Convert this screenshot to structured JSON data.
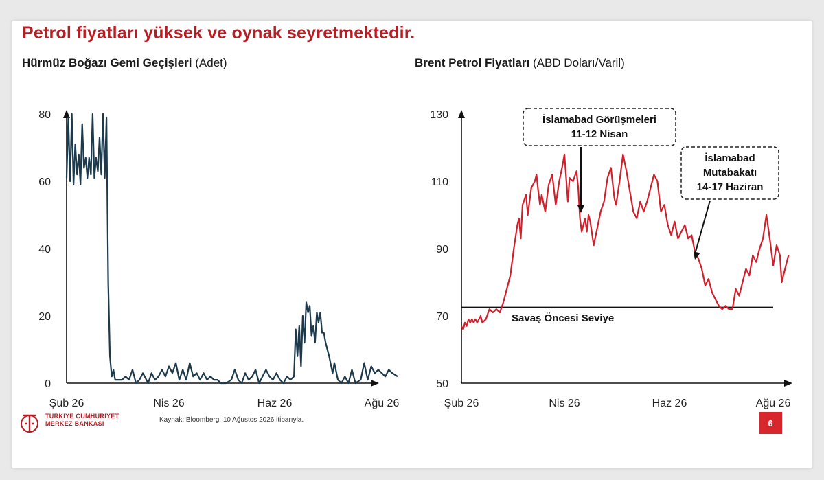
{
  "headline": "Petrol fiyatları yüksek ve oynak seyretmektedir.",
  "left_title": {
    "bold": "Hürmüz Boğazı Gemi Geçişleri",
    "unit": "(Adet)"
  },
  "right_title": {
    "bold": "Brent Petrol Fiyatları",
    "unit": "(ABD Doları/Varil)"
  },
  "source": "Kaynak: Bloomberg, 10 Ağustos 2026 itibarıyla.",
  "logo": {
    "line1": "TÜRKİYE CUMHURİYET",
    "line2": "MERKEZ BANKASI"
  },
  "page_number": "6",
  "colors": {
    "accent": "#b51f24",
    "left_series": "#1d3a4d",
    "right_series": "#d0202b"
  },
  "chart_data": [
    {
      "type": "line",
      "title": "Hürmüz Boğazı Gemi Geçişleri (Adet)",
      "x_axis": {
        "type": "date",
        "range": [
          "2026-02-01",
          "2026-08-10"
        ],
        "ticks": [
          {
            "label": "Şub 26",
            "date": "2026-02-01"
          },
          {
            "label": "Nis 26",
            "date": "2026-04-01"
          },
          {
            "label": "Haz 26",
            "date": "2026-06-01"
          },
          {
            "label": "Ağu 26",
            "date": "2026-08-01"
          }
        ]
      },
      "ylim": [
        0,
        80
      ],
      "yticks": [
        0,
        20,
        40,
        60,
        80
      ],
      "series": [
        {
          "color": "#1d3a4d",
          "points": [
            [
              "2026-02-01",
              61
            ],
            [
              "2026-02-02",
              79
            ],
            [
              "2026-02-03",
              60
            ],
            [
              "2026-02-04",
              80
            ],
            [
              "2026-02-05",
              59
            ],
            [
              "2026-02-06",
              71
            ],
            [
              "2026-02-07",
              62
            ],
            [
              "2026-02-08",
              68
            ],
            [
              "2026-02-09",
              59
            ],
            [
              "2026-02-10",
              77
            ],
            [
              "2026-02-11",
              64
            ],
            [
              "2026-02-12",
              67
            ],
            [
              "2026-02-13",
              61
            ],
            [
              "2026-02-14",
              67
            ],
            [
              "2026-02-15",
              62
            ],
            [
              "2026-02-16",
              80
            ],
            [
              "2026-02-17",
              61
            ],
            [
              "2026-02-18",
              67
            ],
            [
              "2026-02-19",
              63
            ],
            [
              "2026-02-20",
              73
            ],
            [
              "2026-02-21",
              62
            ],
            [
              "2026-02-22",
              80
            ],
            [
              "2026-02-23",
              61
            ],
            [
              "2026-02-24",
              79
            ],
            [
              "2026-02-25",
              30
            ],
            [
              "2026-02-26",
              8
            ],
            [
              "2026-02-27",
              2
            ],
            [
              "2026-02-28",
              4
            ],
            [
              "2026-03-01",
              1
            ],
            [
              "2026-03-03",
              1
            ],
            [
              "2026-03-05",
              1
            ],
            [
              "2026-03-07",
              2
            ],
            [
              "2026-03-09",
              1
            ],
            [
              "2026-03-11",
              4
            ],
            [
              "2026-03-13",
              0
            ],
            [
              "2026-03-15",
              1
            ],
            [
              "2026-03-17",
              3
            ],
            [
              "2026-03-19",
              1
            ],
            [
              "2026-03-20",
              0
            ],
            [
              "2026-03-22",
              3
            ],
            [
              "2026-03-24",
              1
            ],
            [
              "2026-03-26",
              2
            ],
            [
              "2026-03-28",
              4
            ],
            [
              "2026-03-30",
              2
            ],
            [
              "2026-04-01",
              5
            ],
            [
              "2026-04-03",
              3
            ],
            [
              "2026-04-05",
              6
            ],
            [
              "2026-04-07",
              1
            ],
            [
              "2026-04-09",
              4
            ],
            [
              "2026-04-11",
              1
            ],
            [
              "2026-04-13",
              6
            ],
            [
              "2026-04-15",
              2
            ],
            [
              "2026-04-17",
              3
            ],
            [
              "2026-04-19",
              1
            ],
            [
              "2026-04-21",
              3
            ],
            [
              "2026-04-23",
              1
            ],
            [
              "2026-04-25",
              2
            ],
            [
              "2026-04-27",
              1
            ],
            [
              "2026-04-29",
              1
            ],
            [
              "2026-05-01",
              0
            ],
            [
              "2026-05-04",
              0
            ],
            [
              "2026-05-07",
              1
            ],
            [
              "2026-05-09",
              4
            ],
            [
              "2026-05-11",
              1
            ],
            [
              "2026-05-13",
              0
            ],
            [
              "2026-05-15",
              3
            ],
            [
              "2026-05-17",
              1
            ],
            [
              "2026-05-19",
              2
            ],
            [
              "2026-05-21",
              4
            ],
            [
              "2026-05-23",
              0
            ],
            [
              "2026-05-25",
              2
            ],
            [
              "2026-05-27",
              4
            ],
            [
              "2026-05-29",
              2
            ],
            [
              "2026-05-31",
              1
            ],
            [
              "2026-06-02",
              3
            ],
            [
              "2026-06-04",
              1
            ],
            [
              "2026-06-06",
              0
            ],
            [
              "2026-06-08",
              2
            ],
            [
              "2026-06-10",
              1
            ],
            [
              "2026-06-12",
              2
            ],
            [
              "2026-06-13",
              16
            ],
            [
              "2026-06-14",
              8
            ],
            [
              "2026-06-15",
              17
            ],
            [
              "2026-06-16",
              5
            ],
            [
              "2026-06-17",
              20
            ],
            [
              "2026-06-18",
              12
            ],
            [
              "2026-06-19",
              24
            ],
            [
              "2026-06-20",
              21
            ],
            [
              "2026-06-21",
              23
            ],
            [
              "2026-06-22",
              14
            ],
            [
              "2026-06-23",
              17
            ],
            [
              "2026-06-24",
              12
            ],
            [
              "2026-06-25",
              21
            ],
            [
              "2026-06-26",
              18
            ],
            [
              "2026-06-27",
              21
            ],
            [
              "2026-06-28",
              15
            ],
            [
              "2026-06-29",
              15
            ],
            [
              "2026-06-30",
              12
            ],
            [
              "2026-07-02",
              8
            ],
            [
              "2026-07-04",
              3
            ],
            [
              "2026-07-05",
              6
            ],
            [
              "2026-07-07",
              1
            ],
            [
              "2026-07-09",
              0
            ],
            [
              "2026-07-11",
              2
            ],
            [
              "2026-07-13",
              0
            ],
            [
              "2026-07-15",
              4
            ],
            [
              "2026-07-17",
              0
            ],
            [
              "2026-07-20",
              1
            ],
            [
              "2026-07-22",
              6
            ],
            [
              "2026-07-24",
              1
            ],
            [
              "2026-07-26",
              5
            ],
            [
              "2026-07-28",
              3
            ],
            [
              "2026-07-30",
              4
            ],
            [
              "2026-08-01",
              3
            ],
            [
              "2026-08-03",
              2
            ],
            [
              "2026-08-05",
              4
            ],
            [
              "2026-08-07",
              3
            ],
            [
              "2026-08-10",
              2
            ]
          ]
        }
      ]
    },
    {
      "type": "line",
      "title": "Brent Petrol Fiyatları (ABD Doları/Varil)",
      "x_axis": {
        "type": "date",
        "range": [
          "2026-02-01",
          "2026-08-10"
        ],
        "ticks": [
          {
            "label": "Şub 26",
            "date": "2026-02-01"
          },
          {
            "label": "Nis 26",
            "date": "2026-04-01"
          },
          {
            "label": "Haz 26",
            "date": "2026-06-01"
          },
          {
            "label": "Ağu 26",
            "date": "2026-08-01"
          }
        ]
      },
      "ylim": [
        50,
        130
      ],
      "yticks": [
        50,
        70,
        90,
        110,
        130
      ],
      "reference_line": {
        "value": 72.5,
        "label": "Savaş Öncesi Seviye"
      },
      "annotations": [
        {
          "lines": [
            "İslamabad Görüşmeleri",
            "11-12 Nisan"
          ]
        },
        {
          "lines": [
            "İslamabad",
            "Mutabakatı",
            "14-17 Haziran"
          ]
        }
      ],
      "series": [
        {
          "color": "#d0202b",
          "points": [
            [
              "2026-02-01",
              67
            ],
            [
              "2026-02-02",
              66
            ],
            [
              "2026-02-03",
              68
            ],
            [
              "2026-02-04",
              67
            ],
            [
              "2026-02-05",
              69
            ],
            [
              "2026-02-06",
              68
            ],
            [
              "2026-02-07",
              69
            ],
            [
              "2026-02-08",
              68
            ],
            [
              "2026-02-09",
              69
            ],
            [
              "2026-02-10",
              68
            ],
            [
              "2026-02-12",
              70
            ],
            [
              "2026-02-13",
              68
            ],
            [
              "2026-02-15",
              69
            ],
            [
              "2026-02-17",
              72
            ],
            [
              "2026-02-19",
              71
            ],
            [
              "2026-02-21",
              72
            ],
            [
              "2026-02-23",
              71
            ],
            [
              "2026-02-25",
              74
            ],
            [
              "2026-02-27",
              78
            ],
            [
              "2026-03-01",
              82
            ],
            [
              "2026-03-03",
              90
            ],
            [
              "2026-03-05",
              97
            ],
            [
              "2026-03-06",
              99
            ],
            [
              "2026-03-07",
              93
            ],
            [
              "2026-03-08",
              103
            ],
            [
              "2026-03-10",
              106
            ],
            [
              "2026-03-11",
              100
            ],
            [
              "2026-03-13",
              108
            ],
            [
              "2026-03-15",
              110
            ],
            [
              "2026-03-16",
              112
            ],
            [
              "2026-03-17",
              107
            ],
            [
              "2026-03-18",
              103
            ],
            [
              "2026-03-19",
              106
            ],
            [
              "2026-03-21",
              101
            ],
            [
              "2026-03-23",
              109
            ],
            [
              "2026-03-25",
              112
            ],
            [
              "2026-03-27",
              103
            ],
            [
              "2026-03-29",
              110
            ],
            [
              "2026-03-31",
              115
            ],
            [
              "2026-04-01",
              118
            ],
            [
              "2026-04-03",
              104
            ],
            [
              "2026-04-04",
              111
            ],
            [
              "2026-04-06",
              110
            ],
            [
              "2026-04-08",
              113
            ],
            [
              "2026-04-09",
              108
            ],
            [
              "2026-04-10",
              99
            ],
            [
              "2026-04-11",
              95
            ],
            [
              "2026-04-12",
              97
            ],
            [
              "2026-04-13",
              99
            ],
            [
              "2026-04-14",
              95
            ],
            [
              "2026-04-15",
              100
            ],
            [
              "2026-04-16",
              98
            ],
            [
              "2026-04-18",
              91
            ],
            [
              "2026-04-20",
              96
            ],
            [
              "2026-04-22",
              101
            ],
            [
              "2026-04-24",
              104
            ],
            [
              "2026-04-26",
              111
            ],
            [
              "2026-04-28",
              114
            ],
            [
              "2026-04-30",
              105
            ],
            [
              "2026-05-01",
              103
            ],
            [
              "2026-05-03",
              110
            ],
            [
              "2026-05-05",
              118
            ],
            [
              "2026-05-07",
              113
            ],
            [
              "2026-05-09",
              107
            ],
            [
              "2026-05-11",
              101
            ],
            [
              "2026-05-13",
              99
            ],
            [
              "2026-05-15",
              104
            ],
            [
              "2026-05-17",
              101
            ],
            [
              "2026-05-19",
              104
            ],
            [
              "2026-05-21",
              108
            ],
            [
              "2026-05-23",
              112
            ],
            [
              "2026-05-25",
              110
            ],
            [
              "2026-05-27",
              101
            ],
            [
              "2026-05-29",
              103
            ],
            [
              "2026-05-31",
              97
            ],
            [
              "2026-06-02",
              94
            ],
            [
              "2026-06-04",
              98
            ],
            [
              "2026-06-06",
              93
            ],
            [
              "2026-06-08",
              95
            ],
            [
              "2026-06-10",
              97
            ],
            [
              "2026-06-12",
              93
            ],
            [
              "2026-06-14",
              94
            ],
            [
              "2026-06-16",
              89
            ],
            [
              "2026-06-18",
              87
            ],
            [
              "2026-06-20",
              84
            ],
            [
              "2026-06-22",
              79
            ],
            [
              "2026-06-24",
              81
            ],
            [
              "2026-06-26",
              77
            ],
            [
              "2026-06-28",
              75
            ],
            [
              "2026-06-30",
              73
            ],
            [
              "2026-07-02",
              72
            ],
            [
              "2026-07-04",
              73
            ],
            [
              "2026-07-06",
              72
            ],
            [
              "2026-07-08",
              72
            ],
            [
              "2026-07-10",
              78
            ],
            [
              "2026-07-12",
              76
            ],
            [
              "2026-07-14",
              80
            ],
            [
              "2026-07-16",
              84
            ],
            [
              "2026-07-18",
              82
            ],
            [
              "2026-07-20",
              88
            ],
            [
              "2026-07-22",
              86
            ],
            [
              "2026-07-24",
              90
            ],
            [
              "2026-07-26",
              93
            ],
            [
              "2026-07-28",
              100
            ],
            [
              "2026-07-30",
              93
            ],
            [
              "2026-08-01",
              85
            ],
            [
              "2026-08-03",
              91
            ],
            [
              "2026-08-05",
              88
            ],
            [
              "2026-08-06",
              80
            ],
            [
              "2026-08-08",
              84
            ],
            [
              "2026-08-10",
              88
            ]
          ]
        }
      ]
    }
  ]
}
